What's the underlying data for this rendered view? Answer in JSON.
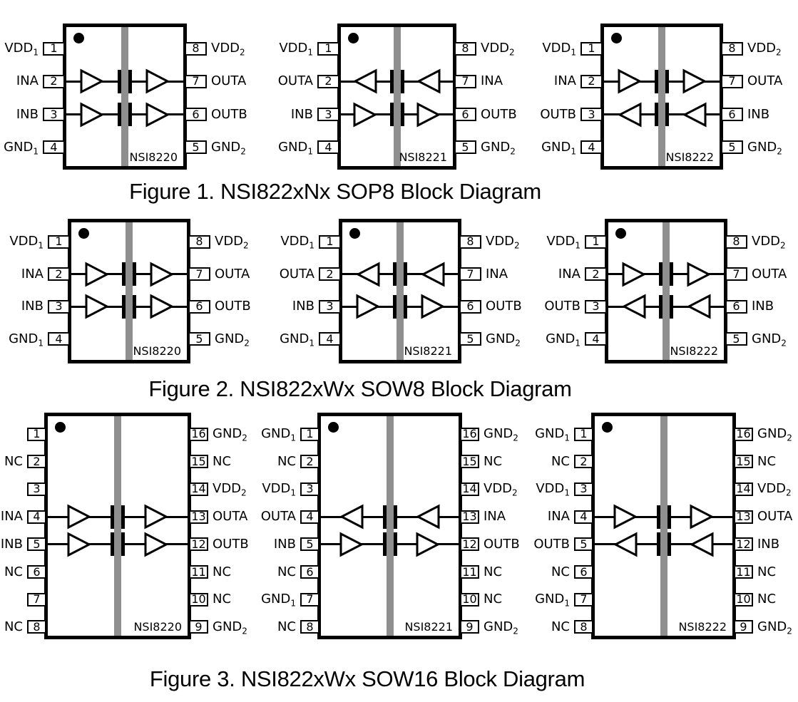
{
  "colors": {
    "line_black": "#000000",
    "isolation_barrier_gray": "#8f8f8f",
    "background": "#ffffff"
  },
  "figures": [
    {
      "caption": "Figure 1. NSI822xNx SOP8 Block Diagram",
      "chips": [
        {
          "name": "NSI8220",
          "channels": [
            "right",
            "right"
          ],
          "left_pins": [
            {
              "label": "VDD",
              "sub": "1",
              "num": "1"
            },
            {
              "label": "INA",
              "sub": "",
              "num": "2"
            },
            {
              "label": "INB",
              "sub": "",
              "num": "3"
            },
            {
              "label": "GND",
              "sub": "1",
              "num": "4"
            }
          ],
          "right_pins": [
            {
              "label": "VDD",
              "sub": "2",
              "num": "8"
            },
            {
              "label": "OUTA",
              "sub": "",
              "num": "7"
            },
            {
              "label": "OUTB",
              "sub": "",
              "num": "6"
            },
            {
              "label": "GND",
              "sub": "2",
              "num": "5"
            }
          ]
        },
        {
          "name": "NSI8221",
          "channels": [
            "left",
            "right"
          ],
          "left_pins": [
            {
              "label": "VDD",
              "sub": "1",
              "num": "1"
            },
            {
              "label": "OUTA",
              "sub": "",
              "num": "2"
            },
            {
              "label": "INB",
              "sub": "",
              "num": "3"
            },
            {
              "label": "GND",
              "sub": "1",
              "num": "4"
            }
          ],
          "right_pins": [
            {
              "label": "VDD",
              "sub": "2",
              "num": "8"
            },
            {
              "label": "INA",
              "sub": "",
              "num": "7"
            },
            {
              "label": "OUTB",
              "sub": "",
              "num": "6"
            },
            {
              "label": "GND",
              "sub": "2",
              "num": "5"
            }
          ]
        },
        {
          "name": "NSI8222",
          "channels": [
            "right",
            "left"
          ],
          "left_pins": [
            {
              "label": "VDD",
              "sub": "1",
              "num": "1"
            },
            {
              "label": "INA",
              "sub": "",
              "num": "2"
            },
            {
              "label": "OUTB",
              "sub": "",
              "num": "3"
            },
            {
              "label": "GND",
              "sub": "1",
              "num": "4"
            }
          ],
          "right_pins": [
            {
              "label": "VDD",
              "sub": "2",
              "num": "8"
            },
            {
              "label": "OUTA",
              "sub": "",
              "num": "7"
            },
            {
              "label": "INB",
              "sub": "",
              "num": "6"
            },
            {
              "label": "GND",
              "sub": "2",
              "num": "5"
            }
          ]
        }
      ]
    },
    {
      "caption": "Figure 2. NSI822xWx SOW8 Block Diagram",
      "chips": [
        {
          "name": "NSI8220",
          "channels": [
            "right",
            "right"
          ],
          "left_pins": [
            {
              "label": "VDD",
              "sub": "1",
              "num": "1"
            },
            {
              "label": "INA",
              "sub": "",
              "num": "2"
            },
            {
              "label": "INB",
              "sub": "",
              "num": "3"
            },
            {
              "label": "GND",
              "sub": "1",
              "num": "4"
            }
          ],
          "right_pins": [
            {
              "label": "VDD",
              "sub": "2",
              "num": "8"
            },
            {
              "label": "OUTA",
              "sub": "",
              "num": "7"
            },
            {
              "label": "OUTB",
              "sub": "",
              "num": "6"
            },
            {
              "label": "GND",
              "sub": "2",
              "num": "5"
            }
          ]
        },
        {
          "name": "NSI8221",
          "channels": [
            "left",
            "right"
          ],
          "left_pins": [
            {
              "label": "VDD",
              "sub": "1",
              "num": "1"
            },
            {
              "label": "OUTA",
              "sub": "",
              "num": "2"
            },
            {
              "label": "INB",
              "sub": "",
              "num": "3"
            },
            {
              "label": "GND",
              "sub": "1",
              "num": "4"
            }
          ],
          "right_pins": [
            {
              "label": "VDD",
              "sub": "2",
              "num": "8"
            },
            {
              "label": "INA",
              "sub": "",
              "num": "7"
            },
            {
              "label": "OUTB",
              "sub": "",
              "num": "6"
            },
            {
              "label": "GND",
              "sub": "2",
              "num": "5"
            }
          ]
        },
        {
          "name": "NSI8222",
          "channels": [
            "right",
            "left"
          ],
          "left_pins": [
            {
              "label": "VDD",
              "sub": "1",
              "num": "1"
            },
            {
              "label": "INA",
              "sub": "",
              "num": "2"
            },
            {
              "label": "OUTB",
              "sub": "",
              "num": "3"
            },
            {
              "label": "GND",
              "sub": "1",
              "num": "4"
            }
          ],
          "right_pins": [
            {
              "label": "VDD",
              "sub": "2",
              "num": "8"
            },
            {
              "label": "OUTA",
              "sub": "",
              "num": "7"
            },
            {
              "label": "INB",
              "sub": "",
              "num": "6"
            },
            {
              "label": "GND",
              "sub": "2",
              "num": "5"
            }
          ]
        }
      ]
    },
    {
      "caption": "Figure 3. NSI822xWx SOW16 Block Diagram",
      "chips": [
        {
          "name": "NSI8220",
          "channels": [
            "right",
            "right"
          ],
          "left_pins": [
            {
              "label": "",
              "sub": "",
              "num": "1"
            },
            {
              "label": "NC",
              "sub": "",
              "num": "2"
            },
            {
              "label": "",
              "sub": "",
              "num": "3"
            },
            {
              "label": "INA",
              "sub": "",
              "num": "4"
            },
            {
              "label": "INB",
              "sub": "",
              "num": "5"
            },
            {
              "label": "NC",
              "sub": "",
              "num": "6"
            },
            {
              "label": "",
              "sub": "",
              "num": "7"
            },
            {
              "label": "NC",
              "sub": "",
              "num": "8"
            }
          ],
          "right_pins": [
            {
              "label": "GND",
              "sub": "2",
              "num": "16"
            },
            {
              "label": "NC",
              "sub": "",
              "num": "15"
            },
            {
              "label": "VDD",
              "sub": "2",
              "num": "14"
            },
            {
              "label": "OUTA",
              "sub": "",
              "num": "13"
            },
            {
              "label": "OUTB",
              "sub": "",
              "num": "12"
            },
            {
              "label": "NC",
              "sub": "",
              "num": "11"
            },
            {
              "label": "NC",
              "sub": "",
              "num": "10"
            },
            {
              "label": "GND",
              "sub": "2",
              "num": "9"
            }
          ]
        },
        {
          "name": "NSI8221",
          "channels": [
            "left",
            "right"
          ],
          "left_pins": [
            {
              "label": "GND",
              "sub": "1",
              "num": "1"
            },
            {
              "label": "NC",
              "sub": "",
              "num": "2"
            },
            {
              "label": "VDD",
              "sub": "1",
              "num": "3"
            },
            {
              "label": "OUTA",
              "sub": "",
              "num": "4"
            },
            {
              "label": "INB",
              "sub": "",
              "num": "5"
            },
            {
              "label": "NC",
              "sub": "",
              "num": "6"
            },
            {
              "label": "GND",
              "sub": "1",
              "num": "7"
            },
            {
              "label": "NC",
              "sub": "",
              "num": "8"
            }
          ],
          "right_pins": [
            {
              "label": "GND",
              "sub": "2",
              "num": "16"
            },
            {
              "label": "NC",
              "sub": "",
              "num": "15"
            },
            {
              "label": "VDD",
              "sub": "2",
              "num": "14"
            },
            {
              "label": "INA",
              "sub": "",
              "num": "13"
            },
            {
              "label": "OUTB",
              "sub": "",
              "num": "12"
            },
            {
              "label": "NC",
              "sub": "",
              "num": "11"
            },
            {
              "label": "NC",
              "sub": "",
              "num": "10"
            },
            {
              "label": "GND",
              "sub": "2",
              "num": "9"
            }
          ]
        },
        {
          "name": "NSI8222",
          "channels": [
            "right",
            "left"
          ],
          "left_pins": [
            {
              "label": "GND",
              "sub": "1",
              "num": "1"
            },
            {
              "label": "NC",
              "sub": "",
              "num": "2"
            },
            {
              "label": "VDD",
              "sub": "1",
              "num": "3"
            },
            {
              "label": "INA",
              "sub": "",
              "num": "4"
            },
            {
              "label": "OUTB",
              "sub": "",
              "num": "5"
            },
            {
              "label": "NC",
              "sub": "",
              "num": "6"
            },
            {
              "label": "GND",
              "sub": "1",
              "num": "7"
            },
            {
              "label": "NC",
              "sub": "",
              "num": "8"
            }
          ],
          "right_pins": [
            {
              "label": "GND",
              "sub": "2",
              "num": "16"
            },
            {
              "label": "NC",
              "sub": "",
              "num": "15"
            },
            {
              "label": "VDD",
              "sub": "2",
              "num": "14"
            },
            {
              "label": "OUTA",
              "sub": "",
              "num": "13"
            },
            {
              "label": "INB",
              "sub": "",
              "num": "12"
            },
            {
              "label": "NC",
              "sub": "",
              "num": "11"
            },
            {
              "label": "NC",
              "sub": "",
              "num": "10"
            },
            {
              "label": "GND",
              "sub": "2",
              "num": "9"
            }
          ]
        }
      ]
    }
  ]
}
